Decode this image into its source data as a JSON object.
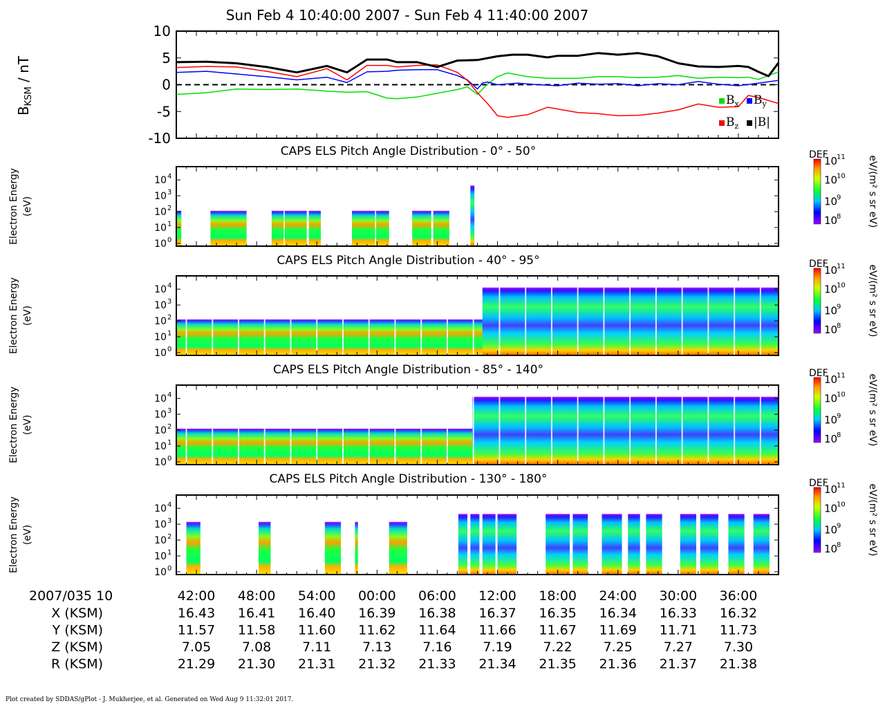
{
  "title": "Sun Feb 4 10:40:00 2007 - Sun Feb 4 11:40:00 2007",
  "footer": "Plot created by SDDAS/gPlot - J. Mukherjee, et al.  Generated on Wed Aug 9 11:32:01 2017.",
  "colors": {
    "bx": "#00dd00",
    "by": "#0000ff",
    "bz": "#ff0000",
    "bmag": "#000000"
  },
  "chart_data": [
    {
      "type": "line",
      "ylabel_main": "B",
      "ylabel_sub": "KSM",
      "ylabel_unit": " / nT",
      "ylim": [
        -10,
        10
      ],
      "yticks": [
        "10",
        "5",
        "0",
        "-5",
        "-10"
      ],
      "xlim_minutes": [
        0,
        60
      ],
      "legend": {
        "bx_main": "B",
        "bx_sub": "x",
        "by_main": "B",
        "by_sub": "y",
        "bz_main": "B",
        "bz_sub": "z",
        "bmag": "|B|"
      },
      "series": [
        {
          "key": "bmag",
          "t": [
            0,
            3,
            6,
            9,
            12,
            15,
            17,
            19,
            21,
            22,
            24,
            26,
            28,
            30,
            32,
            33.5,
            35,
            37,
            38,
            40,
            42,
            44,
            46,
            48,
            50,
            52,
            54,
            56,
            57,
            58,
            59,
            60
          ],
          "values": [
            4.2,
            4.3,
            4.0,
            3.3,
            2.3,
            3.5,
            2.3,
            4.7,
            4.7,
            4.2,
            4.2,
            3.3,
            4.5,
            4.6,
            5.3,
            5.6,
            5.6,
            5.1,
            5.4,
            5.4,
            5.9,
            5.6,
            5.9,
            5.3,
            4.0,
            3.4,
            3.3,
            3.5,
            3.3,
            2.4,
            1.6,
            4.1
          ]
        },
        {
          "key": "bx",
          "t": [
            0,
            3,
            6,
            9,
            12,
            15,
            17,
            19,
            21,
            22,
            24,
            26,
            28,
            29,
            30,
            31,
            32,
            33,
            35,
            37,
            40,
            42,
            44,
            46,
            48,
            50,
            52,
            54,
            56,
            57,
            58,
            60
          ],
          "values": [
            -1.8,
            -1.5,
            -0.8,
            -0.9,
            -0.8,
            -1.2,
            -1.4,
            -1.3,
            -2.5,
            -2.6,
            -2.3,
            -1.6,
            -0.9,
            -0.4,
            -1.8,
            0.1,
            1.5,
            2.2,
            1.5,
            1.2,
            1.2,
            1.5,
            1.5,
            1.3,
            1.4,
            1.7,
            1.2,
            1.4,
            1.3,
            1.4,
            1.0,
            2.4
          ]
        },
        {
          "key": "by",
          "t": [
            0,
            3,
            6,
            9,
            12,
            15,
            17,
            19,
            21,
            22,
            24,
            26,
            28,
            29,
            30,
            30.5,
            31,
            32,
            34,
            36,
            38,
            40,
            42,
            44,
            46,
            48,
            50,
            52,
            54,
            56,
            58,
            60
          ],
          "values": [
            2.3,
            2.5,
            2.0,
            1.5,
            0.9,
            1.4,
            0.4,
            2.4,
            2.5,
            2.7,
            2.8,
            2.8,
            1.7,
            0.9,
            -0.8,
            0.3,
            0.5,
            0.0,
            0.3,
            0.0,
            -0.2,
            0.3,
            0.1,
            0.2,
            -0.2,
            0.2,
            0.0,
            0.6,
            0.1,
            -0.2,
            0.3,
            0.8
          ]
        },
        {
          "key": "bz",
          "t": [
            0,
            3,
            6,
            9,
            12,
            15,
            17,
            19,
            21,
            22,
            24,
            26,
            28,
            29,
            30,
            31,
            32,
            33,
            35,
            37,
            40,
            42,
            44,
            46,
            48,
            50,
            52,
            54,
            56,
            57,
            58,
            60
          ],
          "values": [
            3.2,
            3.4,
            3.3,
            2.5,
            1.5,
            3.0,
            0.9,
            3.6,
            3.6,
            3.3,
            3.6,
            3.7,
            2.3,
            0.8,
            -1.5,
            -3.5,
            -5.8,
            -6.1,
            -5.6,
            -4.2,
            -5.2,
            -5.4,
            -5.8,
            -5.7,
            -5.3,
            -4.7,
            -3.6,
            -4.2,
            -4.1,
            -2.0,
            -2.4,
            -3.5
          ]
        }
      ]
    },
    {
      "type": "heatmap",
      "title": "CAPS ELS Pitch Angle Distribution - 0° - 50°",
      "ylabel": [
        "Electron Energy",
        "(eV)"
      ],
      "yticks": [
        "10",
        "10",
        "10",
        "10",
        "10"
      ],
      "ytick_exp": [
        "0",
        "1",
        "2",
        "3",
        "4"
      ],
      "colorbar": {
        "label": "DEF",
        "unit": "eV/(m² s sr eV)",
        "ticks": [
          "10",
          "10",
          "10",
          "10"
        ],
        "exps": [
          "8",
          "9",
          "10",
          "11"
        ]
      },
      "blocks_minutes": [
        [
          0,
          0.5
        ],
        [
          3.4,
          7.0
        ],
        [
          9.5,
          10.7
        ],
        [
          10.8,
          13.0
        ],
        [
          13.2,
          14.4
        ],
        [
          17.5,
          19.8
        ],
        [
          19.9,
          21.2
        ],
        [
          23.5,
          25.4
        ],
        [
          25.6,
          27.2
        ],
        [
          29.3,
          29.7
        ]
      ]
    },
    {
      "type": "heatmap",
      "title": "CAPS ELS Pitch Angle Distribution - 40° - 95°",
      "ylabel": [
        "Electron Energy",
        "(eV)"
      ],
      "yticks": [
        "10",
        "10",
        "10",
        "10",
        "10"
      ],
      "ytick_exp": [
        "0",
        "1",
        "2",
        "3",
        "4"
      ],
      "colorbar": {
        "label": "DEF",
        "unit": "eV/(m² s sr eV)",
        "ticks": [
          "10",
          "10",
          "10",
          "10"
        ],
        "exps": [
          "8",
          "9",
          "10",
          "11"
        ]
      }
    },
    {
      "type": "heatmap",
      "title": "CAPS ELS Pitch Angle Distribution - 85° - 140°",
      "ylabel": [
        "Electron Energy",
        "(eV)"
      ],
      "yticks": [
        "10",
        "10",
        "10",
        "10",
        "10"
      ],
      "ytick_exp": [
        "0",
        "1",
        "2",
        "3",
        "4"
      ],
      "colorbar": {
        "label": "DEF",
        "unit": "eV/(m² s sr eV)",
        "ticks": [
          "10",
          "10",
          "10",
          "10"
        ],
        "exps": [
          "8",
          "9",
          "10",
          "11"
        ]
      }
    },
    {
      "type": "heatmap",
      "title": "CAPS ELS Pitch Angle Distribution - 130° - 180°",
      "ylabel": [
        "Electron Energy",
        "(eV)"
      ],
      "yticks": [
        "10",
        "10",
        "10",
        "10",
        "10"
      ],
      "ytick_exp": [
        "0",
        "1",
        "2",
        "3",
        "4"
      ],
      "colorbar": {
        "label": "DEF",
        "unit": "eV/(m² s sr eV)",
        "ticks": [
          "10",
          "10",
          "10",
          "10"
        ],
        "exps": [
          "8",
          "9",
          "10",
          "11"
        ]
      },
      "blocks_minutes": [
        [
          1.0,
          2.4
        ],
        [
          8.2,
          9.4
        ],
        [
          14.8,
          16.4
        ],
        [
          17.8,
          18.1
        ],
        [
          21.2,
          23.0
        ],
        [
          28.1,
          29.0
        ],
        [
          29.3,
          30.2
        ],
        [
          30.5,
          31.8
        ],
        [
          32.0,
          33.9
        ],
        [
          36.8,
          39.2
        ],
        [
          39.5,
          41.0
        ],
        [
          42.4,
          44.4
        ],
        [
          45.0,
          46.2
        ],
        [
          46.8,
          48.4
        ],
        [
          50.2,
          51.8
        ],
        [
          52.2,
          54.0
        ],
        [
          55.0,
          56.6
        ],
        [
          57.5,
          59.1
        ]
      ]
    }
  ],
  "time_axis": {
    "label": "2007/035 10",
    "ticks_minutes": [
      2,
      8,
      14,
      20,
      26,
      32,
      38,
      44,
      50,
      56
    ],
    "tick_labels": [
      "42:00",
      "48:00",
      "54:00",
      "00:00",
      "06:00",
      "12:00",
      "18:00",
      "24:00",
      "30:00",
      "36:00"
    ]
  },
  "ephemeris": [
    {
      "label": "X (KSM)",
      "values": [
        "16.43",
        "16.41",
        "16.40",
        "16.39",
        "16.38",
        "16.37",
        "16.35",
        "16.34",
        "16.33",
        "16.32"
      ]
    },
    {
      "label": "Y (KSM)",
      "values": [
        "11.57",
        "11.58",
        "11.60",
        "11.62",
        "11.64",
        "11.66",
        "11.67",
        "11.69",
        "11.71",
        "11.73"
      ]
    },
    {
      "label": "Z (KSM)",
      "values": [
        "7.05",
        "7.08",
        "7.11",
        "7.13",
        "7.16",
        "7.19",
        "7.22",
        "7.25",
        "7.27",
        "7.30"
      ]
    },
    {
      "label": "R (KSM)",
      "values": [
        "21.29",
        "21.30",
        "21.31",
        "21.32",
        "21.33",
        "21.34",
        "21.35",
        "21.36",
        "21.37",
        "21.38"
      ]
    }
  ]
}
